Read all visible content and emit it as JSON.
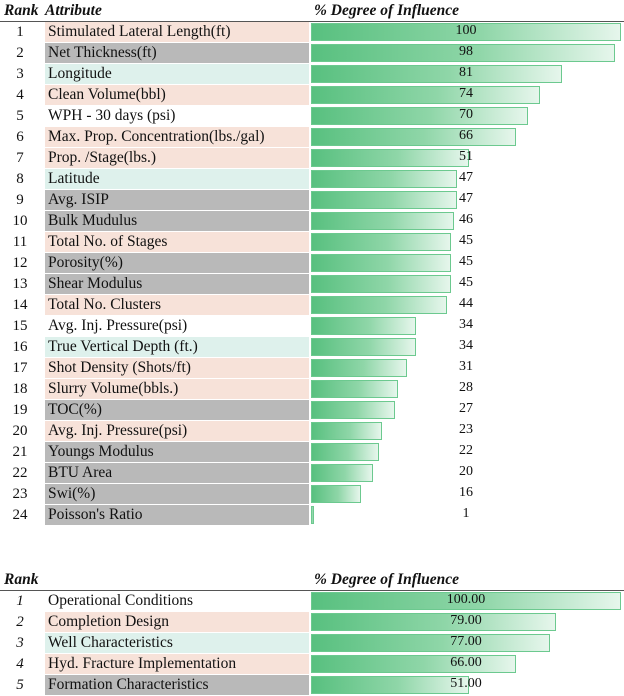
{
  "colors": {
    "peach": "#f7e2d9",
    "gray": "#b9b9b9",
    "mint": "#def1ec",
    "bar": "#58c07f"
  },
  "table1": {
    "headers": {
      "rank": "Rank",
      "attribute": "Attribute",
      "influence": "% Degree of Influence"
    }
  },
  "table2": {
    "headers": {
      "rank": "Rank",
      "attribute": "",
      "influence": "% Degree of Influence"
    }
  },
  "chart_data": [
    {
      "type": "bar",
      "title": "",
      "xlabel": "% Degree of Influence",
      "ylabel": "Attribute",
      "xlim": [
        0,
        100
      ],
      "rows": [
        {
          "rank": "1",
          "label": "Stimulated Lateral Length(ft)",
          "value": 100,
          "value_text": "100",
          "shade": "peach"
        },
        {
          "rank": "2",
          "label": "Net Thickness(ft)",
          "value": 98,
          "value_text": "98",
          "shade": "gray"
        },
        {
          "rank": "3",
          "label": "Longitude",
          "value": 81,
          "value_text": "81",
          "shade": "mint"
        },
        {
          "rank": "4",
          "label": "Clean Volume(bbl)",
          "value": 74,
          "value_text": "74",
          "shade": "peach"
        },
        {
          "rank": "5",
          "label": "WPH - 30 days (psi)",
          "value": 70,
          "value_text": "70",
          "shade": "white"
        },
        {
          "rank": "6",
          "label": "Max. Prop. Concentration(lbs./gal)",
          "value": 66,
          "value_text": "66",
          "shade": "peach"
        },
        {
          "rank": "7",
          "label": "Prop. /Stage(lbs.)",
          "value": 51,
          "value_text": "51",
          "shade": "peach"
        },
        {
          "rank": "8",
          "label": "Latitude",
          "value": 47,
          "value_text": "47",
          "shade": "mint"
        },
        {
          "rank": "9",
          "label": "Avg. ISIP",
          "value": 47,
          "value_text": "47",
          "shade": "gray"
        },
        {
          "rank": "10",
          "label": "Bulk Mudulus",
          "value": 46,
          "value_text": "46",
          "shade": "gray"
        },
        {
          "rank": "11",
          "label": "Total No. of Stages",
          "value": 45,
          "value_text": "45",
          "shade": "peach"
        },
        {
          "rank": "12",
          "label": "Porosity(%)",
          "value": 45,
          "value_text": "45",
          "shade": "gray"
        },
        {
          "rank": "13",
          "label": "Shear Modulus",
          "value": 45,
          "value_text": "45",
          "shade": "gray"
        },
        {
          "rank": "14",
          "label": "Total No. Clusters",
          "value": 44,
          "value_text": "44",
          "shade": "peach"
        },
        {
          "rank": "15",
          "label": "Avg. Inj. Pressure(psi)",
          "value": 34,
          "value_text": "34",
          "shade": "white"
        },
        {
          "rank": "16",
          "label": "True Vertical Depth (ft.)",
          "value": 34,
          "value_text": "34",
          "shade": "mint"
        },
        {
          "rank": "17",
          "label": "Shot Density (Shots/ft)",
          "value": 31,
          "value_text": "31",
          "shade": "peach"
        },
        {
          "rank": "18",
          "label": "Slurry Volume(bbls.)",
          "value": 28,
          "value_text": "28",
          "shade": "peach"
        },
        {
          "rank": "19",
          "label": "TOC(%)",
          "value": 27,
          "value_text": "27",
          "shade": "gray"
        },
        {
          "rank": "20",
          "label": "Avg. Inj. Pressure(psi)",
          "value": 23,
          "value_text": "23",
          "shade": "peach"
        },
        {
          "rank": "21",
          "label": "Youngs Modulus",
          "value": 22,
          "value_text": "22",
          "shade": "gray"
        },
        {
          "rank": "22",
          "label": "BTU Area",
          "value": 20,
          "value_text": "20",
          "shade": "gray"
        },
        {
          "rank": "23",
          "label": "Swi(%)",
          "value": 16,
          "value_text": "16",
          "shade": "gray"
        },
        {
          "rank": "24",
          "label": "Poisson's Ratio",
          "value": 1,
          "value_text": "1",
          "shade": "gray"
        }
      ]
    },
    {
      "type": "bar",
      "title": "",
      "xlabel": "% Degree of Influence",
      "ylabel": "",
      "xlim": [
        0,
        100
      ],
      "rows": [
        {
          "rank": "1",
          "label": "Operational Conditions",
          "value": 100,
          "value_text": "100.00",
          "shade": "white"
        },
        {
          "rank": "2",
          "label": "Completion Design",
          "value": 79,
          "value_text": "79.00",
          "shade": "peach"
        },
        {
          "rank": "3",
          "label": "Well Characteristics",
          "value": 77,
          "value_text": "77.00",
          "shade": "mint"
        },
        {
          "rank": "4",
          "label": "Hyd. Fracture Implementation",
          "value": 66,
          "value_text": "66.00",
          "shade": "peach"
        },
        {
          "rank": "5",
          "label": "Formation Characteristics",
          "value": 51,
          "value_text": "51.00",
          "shade": "gray"
        }
      ]
    }
  ]
}
